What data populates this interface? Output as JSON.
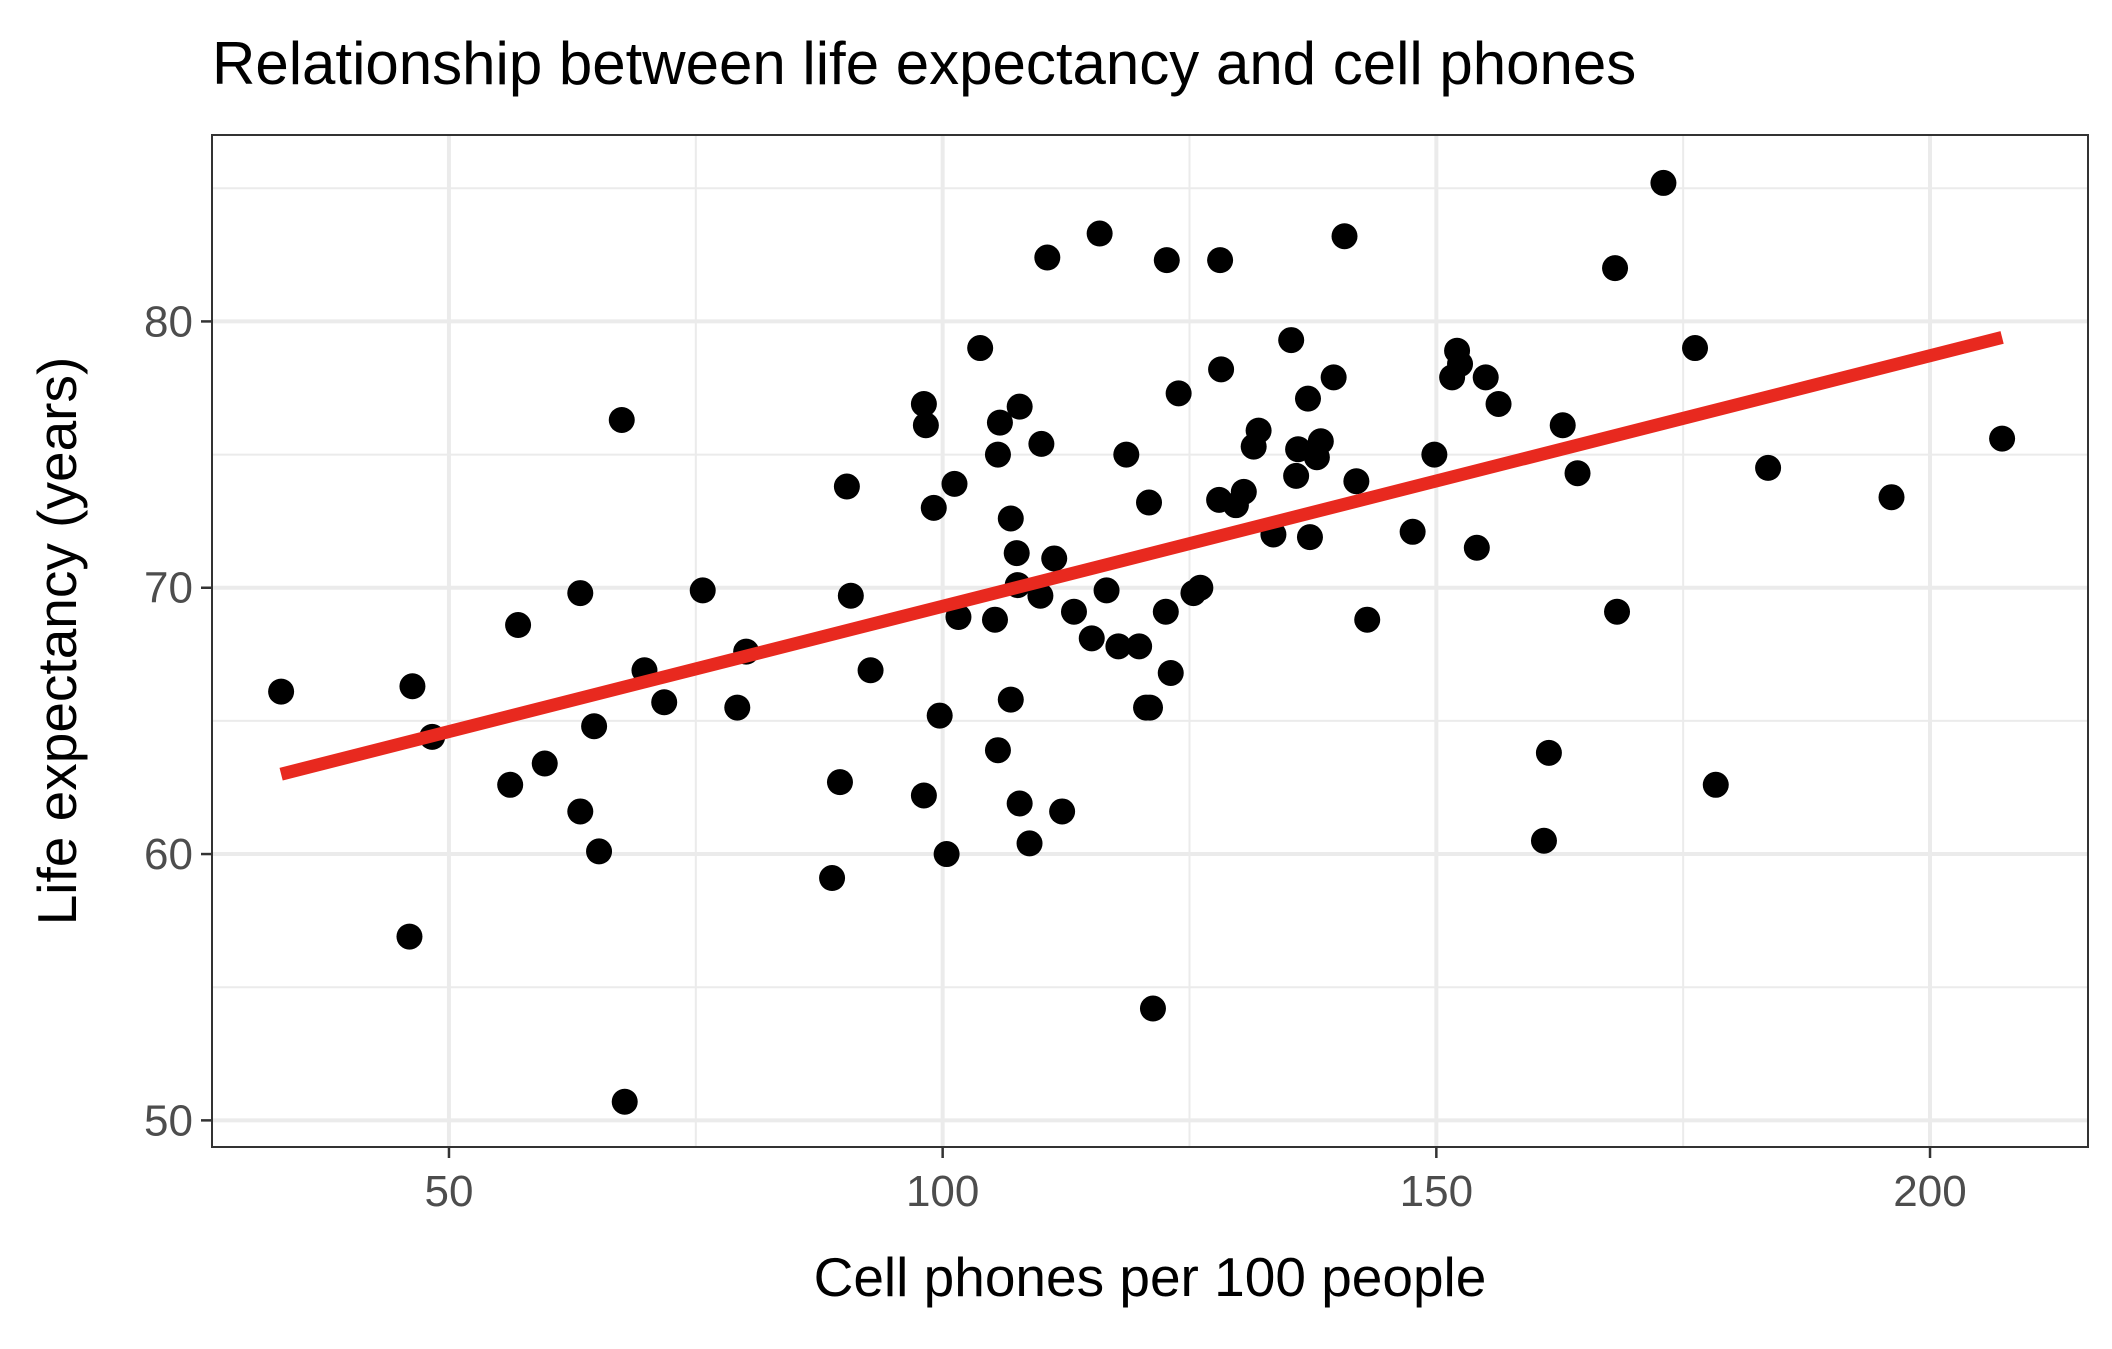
{
  "chart_data": {
    "type": "scatter",
    "title": "Relationship between life expectancy and cell phones",
    "xlabel": "Cell phones per 100 people",
    "ylabel": "Life expectancy (years)",
    "xlim": [
      26,
      216
    ],
    "ylim": [
      49,
      87
    ],
    "x_ticks": [
      50,
      100,
      150,
      200
    ],
    "y_ticks": [
      50,
      60,
      70,
      80
    ],
    "x_tick_labels": [
      "50",
      "100",
      "150",
      "200"
    ],
    "y_tick_labels": [
      "50",
      "60",
      "70",
      "80"
    ],
    "grid": true,
    "legend": "none",
    "colors": {
      "points": "#000000",
      "trend_line": "#e8291f",
      "grid": "#ebebeb",
      "panel_border": "#333333",
      "tick_label": "#4d4d4d"
    },
    "series": [
      {
        "points": [
          [
            33,
            66.1
          ],
          [
            46,
            56.9
          ],
          [
            46.3,
            66.3
          ],
          [
            48.3,
            64.4
          ],
          [
            56.2,
            62.6
          ],
          [
            57,
            68.6
          ],
          [
            59.7,
            63.4
          ],
          [
            63.3,
            61.6
          ],
          [
            63.3,
            69.8
          ],
          [
            64.7,
            64.8
          ],
          [
            65.2,
            60.1
          ],
          [
            67.5,
            76.3
          ],
          [
            67.8,
            50.7
          ],
          [
            69.8,
            66.9
          ],
          [
            71.8,
            65.7
          ],
          [
            75.7,
            69.9
          ],
          [
            79.2,
            65.5
          ],
          [
            80.1,
            67.6
          ],
          [
            88.8,
            59.1
          ],
          [
            89.6,
            62.7
          ],
          [
            90.3,
            73.8
          ],
          [
            90.7,
            69.7
          ],
          [
            92.7,
            66.9
          ],
          [
            98.1,
            62.2
          ],
          [
            98.1,
            76.9
          ],
          [
            98.3,
            76.1
          ],
          [
            99.1,
            73
          ],
          [
            99.7,
            65.2
          ],
          [
            100.4,
            60
          ],
          [
            101.2,
            73.9
          ],
          [
            101.6,
            68.9
          ],
          [
            103.8,
            79
          ],
          [
            105.3,
            68.8
          ],
          [
            105.6,
            63.9
          ],
          [
            105.6,
            75
          ],
          [
            105.8,
            76.2
          ],
          [
            106.9,
            65.8
          ],
          [
            106.9,
            72.6
          ],
          [
            107.5,
            71.3
          ],
          [
            107.6,
            70.1
          ],
          [
            107.8,
            61.9
          ],
          [
            107.8,
            76.8
          ],
          [
            108.8,
            60.4
          ],
          [
            109.9,
            69.7
          ],
          [
            110,
            75.4
          ],
          [
            110.6,
            82.4
          ],
          [
            111.3,
            71.1
          ],
          [
            112.1,
            61.6
          ],
          [
            113.3,
            69.1
          ],
          [
            115.1,
            68.1
          ],
          [
            115.9,
            83.3
          ],
          [
            116.6,
            69.9
          ],
          [
            117.8,
            67.8
          ],
          [
            118.6,
            75
          ],
          [
            119.9,
            67.8
          ],
          [
            120.6,
            65.5
          ],
          [
            120.9,
            73.2
          ],
          [
            121,
            65.5
          ],
          [
            121.3,
            54.2
          ],
          [
            122.6,
            69.1
          ],
          [
            122.7,
            82.3
          ],
          [
            123.1,
            66.8
          ],
          [
            123.9,
            77.3
          ],
          [
            125.4,
            69.8
          ],
          [
            126.1,
            70
          ],
          [
            128,
            73.3
          ],
          [
            128.1,
            82.3
          ],
          [
            128.2,
            78.2
          ],
          [
            129.7,
            73.1
          ],
          [
            130.5,
            73.6
          ],
          [
            131.5,
            75.3
          ],
          [
            132,
            75.9
          ],
          [
            133.5,
            72
          ],
          [
            135.3,
            79.3
          ],
          [
            135.8,
            74.2
          ],
          [
            136,
            75.2
          ],
          [
            137,
            77.1
          ],
          [
            137.2,
            71.9
          ],
          [
            137.9,
            74.9
          ],
          [
            138.3,
            75.5
          ],
          [
            139.6,
            77.9
          ],
          [
            140.7,
            83.2
          ],
          [
            141.9,
            74
          ],
          [
            143,
            68.8
          ],
          [
            147.6,
            72.1
          ],
          [
            149.8,
            75
          ],
          [
            151.6,
            77.9
          ],
          [
            152.1,
            78.9
          ],
          [
            152.4,
            78.4
          ],
          [
            154.1,
            71.5
          ],
          [
            155,
            77.9
          ],
          [
            156.3,
            76.9
          ],
          [
            160.9,
            60.5
          ],
          [
            161.4,
            63.8
          ],
          [
            162.8,
            76.1
          ],
          [
            164.3,
            74.3
          ],
          [
            168.1,
            82
          ],
          [
            168.3,
            69.1
          ],
          [
            173,
            85.2
          ],
          [
            176.2,
            79
          ],
          [
            178.3,
            62.6
          ],
          [
            183.6,
            74.5
          ],
          [
            196.1,
            73.4
          ],
          [
            207.3,
            75.6
          ]
        ]
      }
    ],
    "trend_line": {
      "x": [
        33,
        207.3
      ],
      "y": [
        63,
        79.4
      ]
    }
  }
}
